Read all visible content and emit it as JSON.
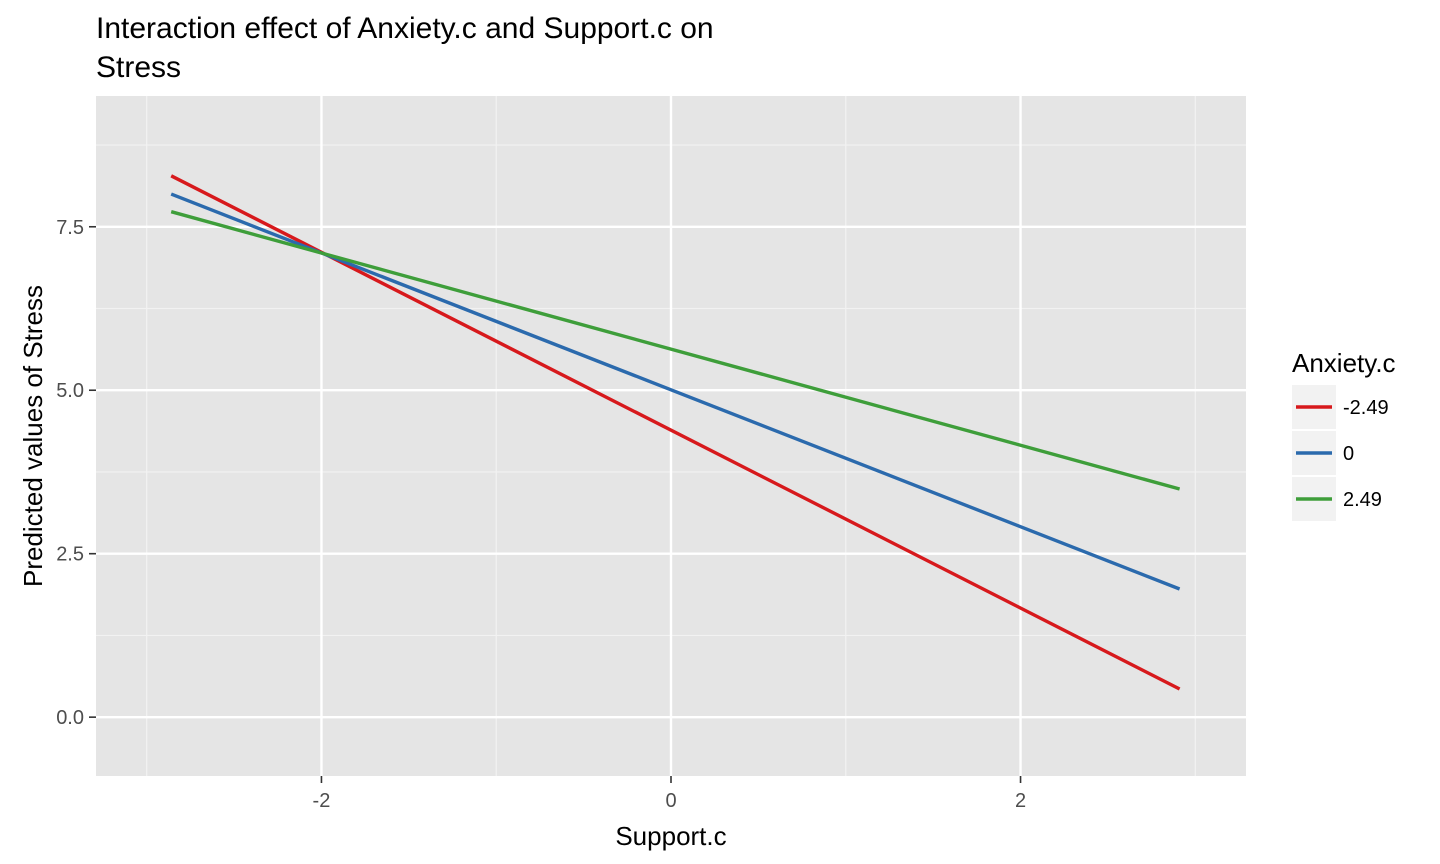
{
  "chart_data": {
    "type": "line",
    "title": "Interaction effect of Anxiety.c and Support.c on",
    "title_line2": "Stress",
    "xlabel": "Support.c",
    "ylabel": "Predicted values of Stress",
    "xlim": [
      -3.29,
      3.29
    ],
    "ylim": [
      -0.9,
      9.5
    ],
    "x_ticks": [
      -2,
      0,
      2
    ],
    "x_tick_labels": [
      "-2",
      "0",
      "2"
    ],
    "y_ticks": [
      0,
      2.5,
      5,
      7.5
    ],
    "y_tick_labels": [
      "0.0",
      "2.5",
      "5.0",
      "7.5"
    ],
    "x_minor": [
      -3,
      -1,
      1,
      3
    ],
    "y_minor": [
      1.25,
      3.75,
      6.25,
      8.75
    ],
    "grid": true,
    "legend": {
      "title": "Anxiety.c",
      "position": "right"
    },
    "series": [
      {
        "name": "-2.49",
        "color": "#d7191c",
        "x": [
          -2.86,
          2.91
        ],
        "y": [
          8.28,
          0.43
        ]
      },
      {
        "name": "0",
        "color": "#2b6aad",
        "x": [
          -2.86,
          2.91
        ],
        "y": [
          8.0,
          1.96
        ]
      },
      {
        "name": "2.49",
        "color": "#3e9e3a",
        "x": [
          -2.86,
          2.91
        ],
        "y": [
          7.73,
          3.49
        ]
      }
    ]
  }
}
